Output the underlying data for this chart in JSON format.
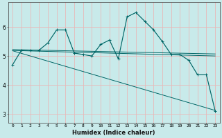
{
  "xlabel": "Humidex (Indice chaleur)",
  "ylabel": "",
  "xlim": [
    -0.5,
    23.5
  ],
  "ylim": [
    2.7,
    6.85
  ],
  "xticks": [
    0,
    1,
    2,
    3,
    4,
    5,
    6,
    7,
    8,
    9,
    10,
    11,
    12,
    13,
    14,
    15,
    16,
    17,
    18,
    19,
    20,
    21,
    22,
    23
  ],
  "yticks": [
    3,
    4,
    5,
    6
  ],
  "background_color": "#c8eaea",
  "grid_color": "#e8b8b8",
  "line_color": "#006666",
  "line1_x": [
    0,
    1,
    2,
    3,
    4,
    5,
    6,
    7,
    8,
    9,
    10,
    11,
    12,
    13,
    14,
    15,
    16,
    17,
    18,
    19,
    20,
    21,
    22,
    23
  ],
  "line1_y": [
    4.7,
    5.2,
    5.2,
    5.2,
    5.45,
    5.9,
    5.9,
    5.1,
    5.05,
    5.0,
    5.4,
    5.55,
    4.9,
    6.35,
    6.5,
    6.2,
    5.9,
    5.5,
    5.05,
    5.05,
    4.85,
    4.35,
    4.35,
    3.1
  ],
  "line2_x": [
    0,
    23
  ],
  "line2_y": [
    5.22,
    5.07
  ],
  "line3_x": [
    0,
    23
  ],
  "line3_y": [
    5.19,
    5.0
  ],
  "line4_x": [
    0,
    23
  ],
  "line4_y": [
    5.18,
    3.12
  ]
}
